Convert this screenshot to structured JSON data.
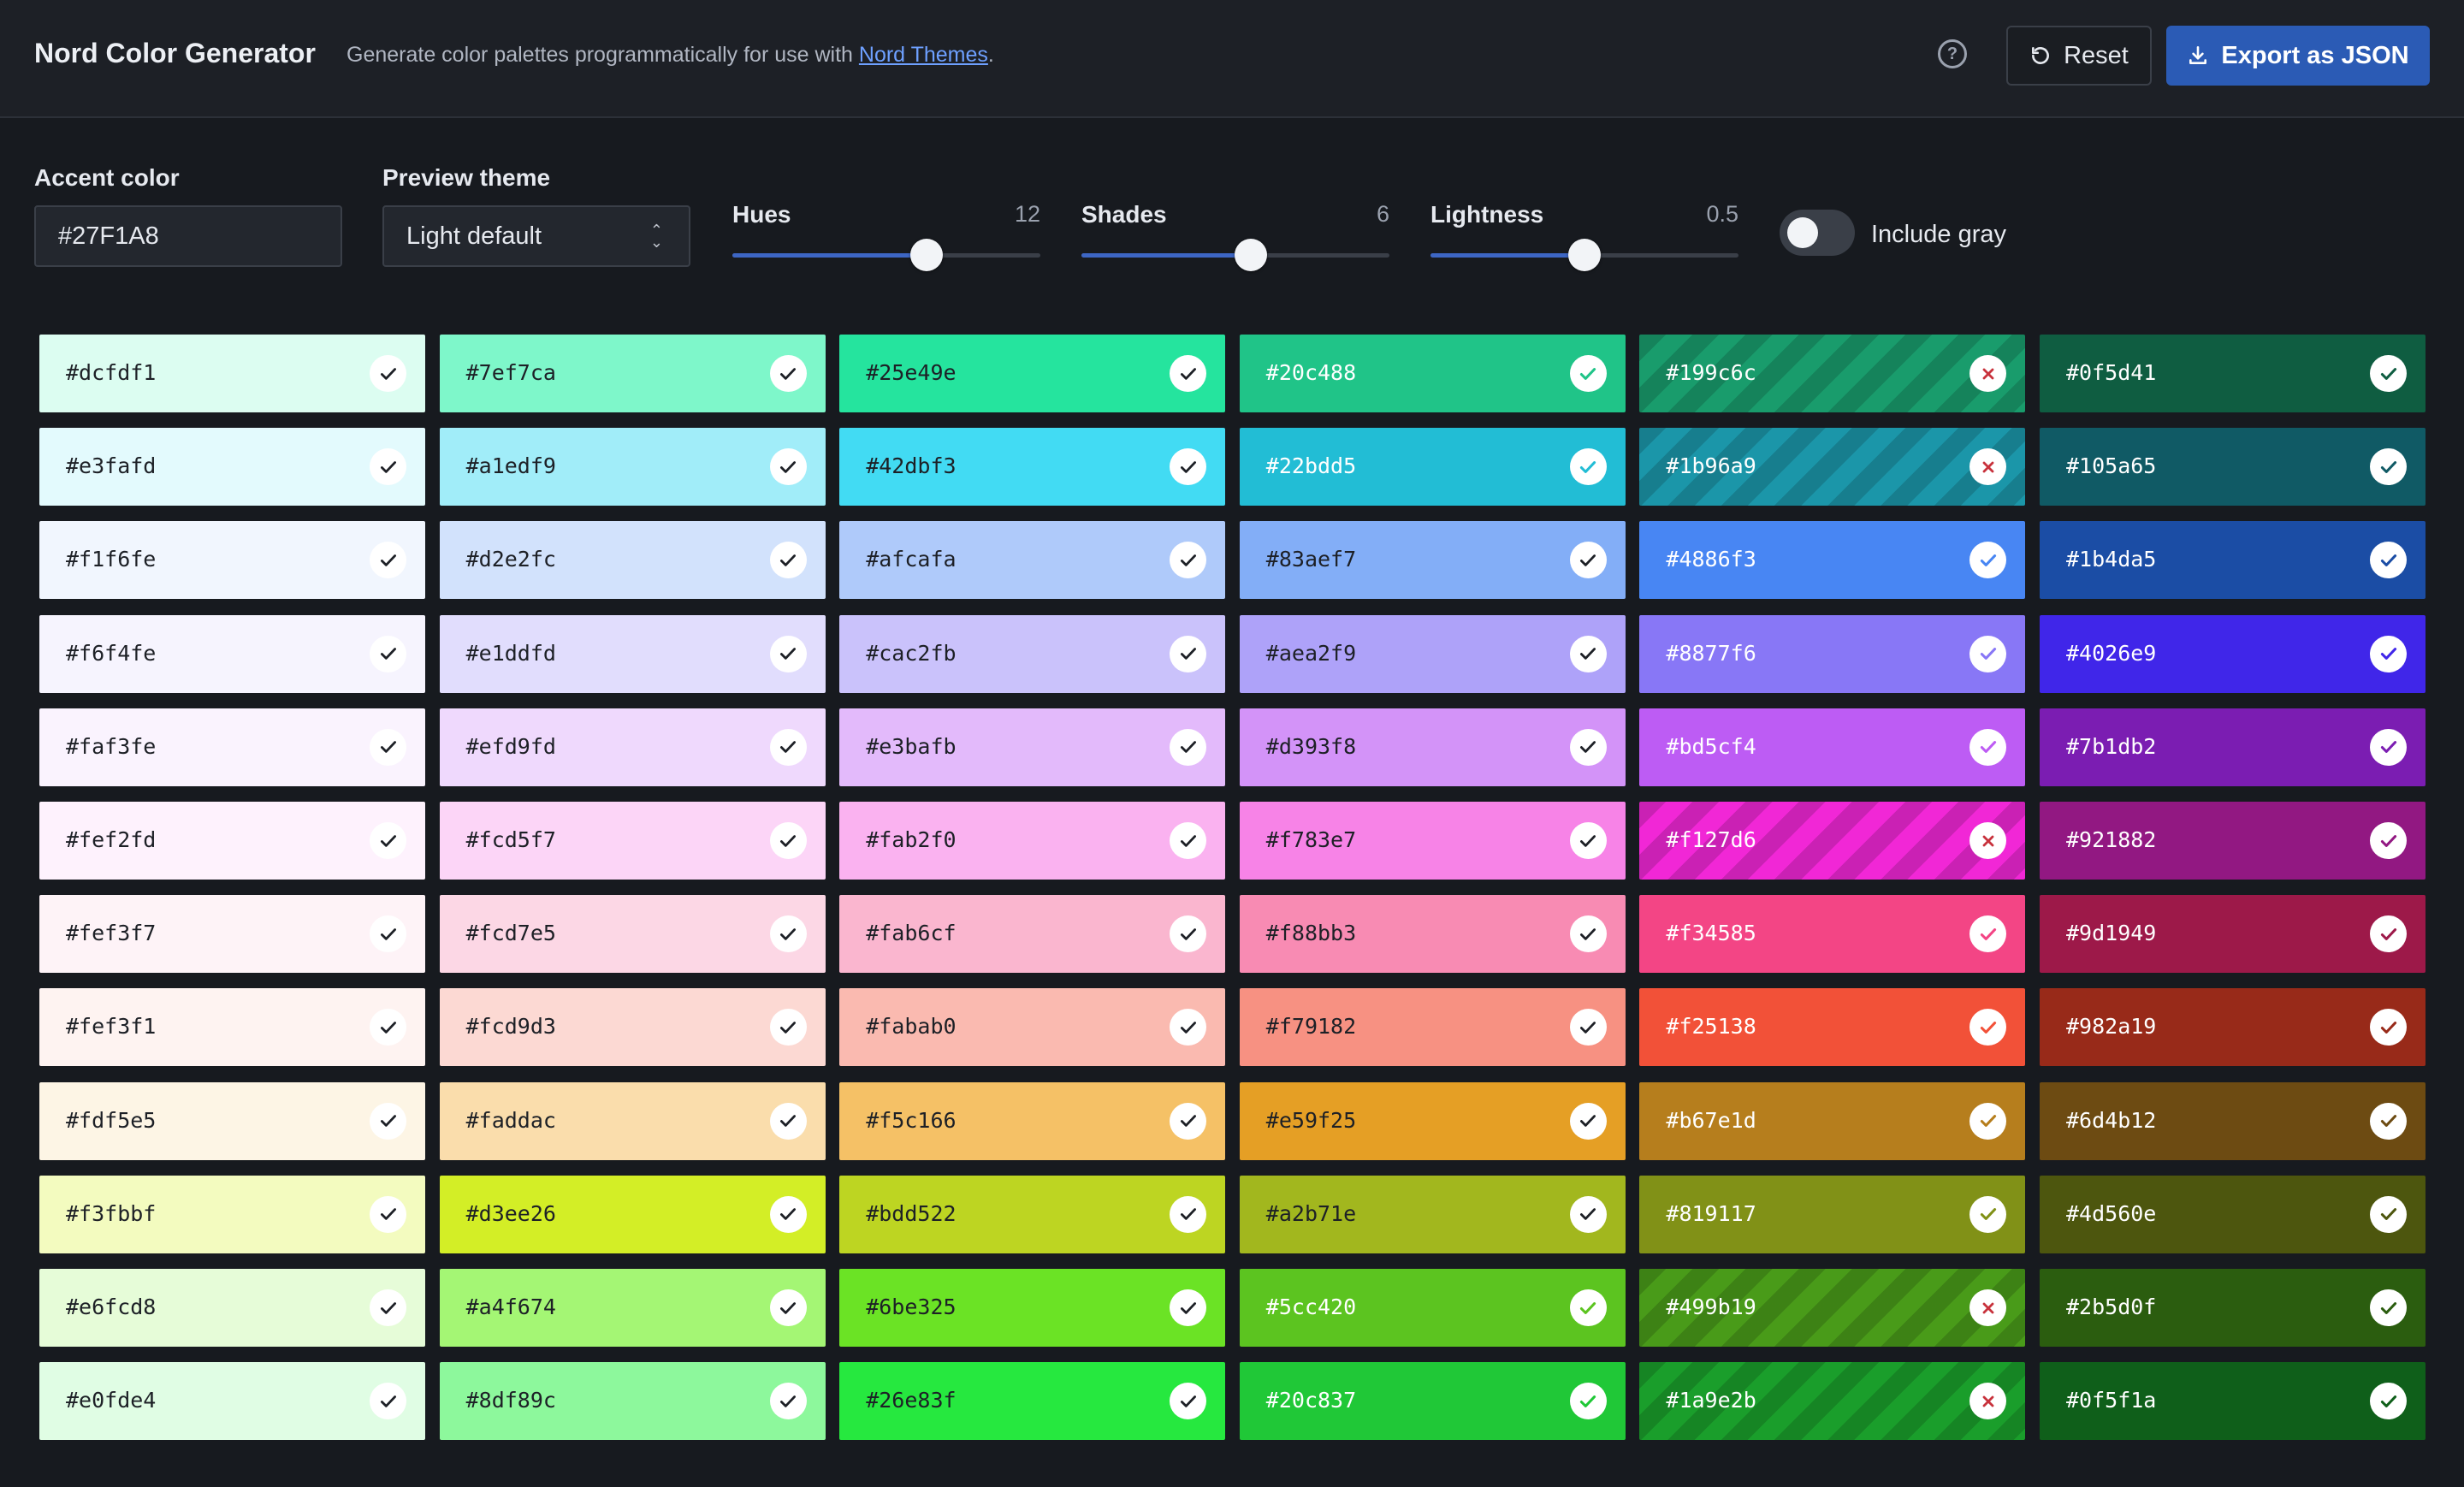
{
  "header": {
    "title": "Nord Color Generator",
    "description_prefix": "Generate color palettes programmatically for use with ",
    "description_link": "Nord Themes",
    "description_suffix": ".",
    "reset_label": "Reset",
    "export_label": "Export as JSON"
  },
  "controls": {
    "accent": {
      "label": "Accent color",
      "value": "#27F1A8"
    },
    "theme": {
      "label": "Preview theme",
      "value": "Light default"
    },
    "hues": {
      "label": "Hues",
      "value": "12",
      "fraction": 0.63
    },
    "shades": {
      "label": "Shades",
      "value": "6",
      "fraction": 0.55
    },
    "lightness": {
      "label": "Lightness",
      "value": "0.5",
      "fraction": 0.5
    },
    "gray": {
      "label": "Include gray",
      "on": false
    }
  },
  "palette": [
    [
      {
        "hex": "#dcfdf1",
        "pass": true
      },
      {
        "hex": "#7ef7ca",
        "pass": true
      },
      {
        "hex": "#25e49e",
        "pass": true
      },
      {
        "hex": "#20c488",
        "pass": true
      },
      {
        "hex": "#199c6c",
        "pass": false
      },
      {
        "hex": "#0f5d41",
        "pass": true
      }
    ],
    [
      {
        "hex": "#e3fafd",
        "pass": true
      },
      {
        "hex": "#a1edf9",
        "pass": true
      },
      {
        "hex": "#42dbf3",
        "pass": true
      },
      {
        "hex": "#22bdd5",
        "pass": true
      },
      {
        "hex": "#1b96a9",
        "pass": false
      },
      {
        "hex": "#105a65",
        "pass": true
      }
    ],
    [
      {
        "hex": "#f1f6fe",
        "pass": true
      },
      {
        "hex": "#d2e2fc",
        "pass": true
      },
      {
        "hex": "#afcafa",
        "pass": true
      },
      {
        "hex": "#83aef7",
        "pass": true
      },
      {
        "hex": "#4886f3",
        "pass": true
      },
      {
        "hex": "#1b4da5",
        "pass": true
      }
    ],
    [
      {
        "hex": "#f6f4fe",
        "pass": true
      },
      {
        "hex": "#e1ddfd",
        "pass": true
      },
      {
        "hex": "#cac2fb",
        "pass": true
      },
      {
        "hex": "#aea2f9",
        "pass": true
      },
      {
        "hex": "#8877f6",
        "pass": true
      },
      {
        "hex": "#4026e9",
        "pass": true
      }
    ],
    [
      {
        "hex": "#faf3fe",
        "pass": true
      },
      {
        "hex": "#efd9fd",
        "pass": true
      },
      {
        "hex": "#e3bafb",
        "pass": true
      },
      {
        "hex": "#d393f8",
        "pass": true
      },
      {
        "hex": "#bd5cf4",
        "pass": true
      },
      {
        "hex": "#7b1db2",
        "pass": true
      }
    ],
    [
      {
        "hex": "#fef2fd",
        "pass": true
      },
      {
        "hex": "#fcd5f7",
        "pass": true
      },
      {
        "hex": "#fab2f0",
        "pass": true
      },
      {
        "hex": "#f783e7",
        "pass": true
      },
      {
        "hex": "#f127d6",
        "pass": false
      },
      {
        "hex": "#921882",
        "pass": true
      }
    ],
    [
      {
        "hex": "#fef3f7",
        "pass": true
      },
      {
        "hex": "#fcd7e5",
        "pass": true
      },
      {
        "hex": "#fab6cf",
        "pass": true
      },
      {
        "hex": "#f88bb3",
        "pass": true
      },
      {
        "hex": "#f34585",
        "pass": true
      },
      {
        "hex": "#9d1949",
        "pass": true
      }
    ],
    [
      {
        "hex": "#fef3f1",
        "pass": true
      },
      {
        "hex": "#fcd9d3",
        "pass": true
      },
      {
        "hex": "#fabab0",
        "pass": true
      },
      {
        "hex": "#f79182",
        "pass": true
      },
      {
        "hex": "#f25138",
        "pass": true
      },
      {
        "hex": "#982a19",
        "pass": true
      }
    ],
    [
      {
        "hex": "#fdf5e5",
        "pass": true
      },
      {
        "hex": "#faddac",
        "pass": true
      },
      {
        "hex": "#f5c166",
        "pass": true
      },
      {
        "hex": "#e59f25",
        "pass": true
      },
      {
        "hex": "#b67e1d",
        "pass": true
      },
      {
        "hex": "#6d4b12",
        "pass": true
      }
    ],
    [
      {
        "hex": "#f3fbbf",
        "pass": true
      },
      {
        "hex": "#d3ee26",
        "pass": true
      },
      {
        "hex": "#bdd522",
        "pass": true
      },
      {
        "hex": "#a2b71e",
        "pass": true
      },
      {
        "hex": "#819117",
        "pass": true
      },
      {
        "hex": "#4d560e",
        "pass": true
      }
    ],
    [
      {
        "hex": "#e6fcd8",
        "pass": true
      },
      {
        "hex": "#a4f674",
        "pass": true
      },
      {
        "hex": "#6be325",
        "pass": true
      },
      {
        "hex": "#5cc420",
        "pass": true
      },
      {
        "hex": "#499b19",
        "pass": false
      },
      {
        "hex": "#2b5d0f",
        "pass": true
      }
    ],
    [
      {
        "hex": "#e0fde4",
        "pass": true
      },
      {
        "hex": "#8df89c",
        "pass": true
      },
      {
        "hex": "#26e83f",
        "pass": true
      },
      {
        "hex": "#20c837",
        "pass": true
      },
      {
        "hex": "#1a9e2b",
        "pass": false
      },
      {
        "hex": "#0f5f1a",
        "pass": true
      }
    ]
  ]
}
